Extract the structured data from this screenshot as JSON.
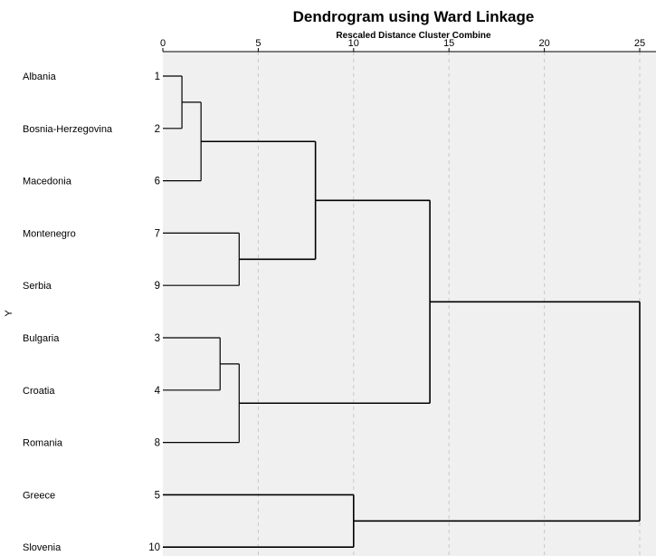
{
  "chart_data": {
    "type": "dendrogram",
    "title": "Dendrogram using Ward Linkage",
    "subtitle": "Rescaled Distance Cluster Combine",
    "ylabel": "Y",
    "x_ticks": [
      0,
      5,
      10,
      15,
      20,
      25
    ],
    "xlim": [
      0,
      25
    ],
    "grid": true,
    "leaves": [
      {
        "label": "Albania",
        "case": "1"
      },
      {
        "label": "Bosnia-Herzegovina",
        "case": "2"
      },
      {
        "label": "Macedonia",
        "case": "6"
      },
      {
        "label": "Montenegro",
        "case": "7"
      },
      {
        "label": "Serbia",
        "case": "9"
      },
      {
        "label": "Bulgaria",
        "case": "3"
      },
      {
        "label": "Croatia",
        "case": "4"
      },
      {
        "label": "Romania",
        "case": "8"
      },
      {
        "label": "Greece",
        "case": "5"
      },
      {
        "label": "Slovenia",
        "case": "10"
      }
    ],
    "merges": [
      {
        "a": "L0",
        "b": "L1",
        "distance": 1
      },
      {
        "a": "M0",
        "b": "L2",
        "distance": 2
      },
      {
        "a": "L3",
        "b": "L4",
        "distance": 4
      },
      {
        "a": "M1",
        "b": "M2",
        "distance": 8
      },
      {
        "a": "L5",
        "b": "L6",
        "distance": 3
      },
      {
        "a": "M4",
        "b": "L7",
        "distance": 4
      },
      {
        "a": "M3",
        "b": "M5",
        "distance": 14
      },
      {
        "a": "L8",
        "b": "L9",
        "distance": 10
      },
      {
        "a": "M6",
        "b": "M7",
        "distance": 25
      }
    ]
  }
}
